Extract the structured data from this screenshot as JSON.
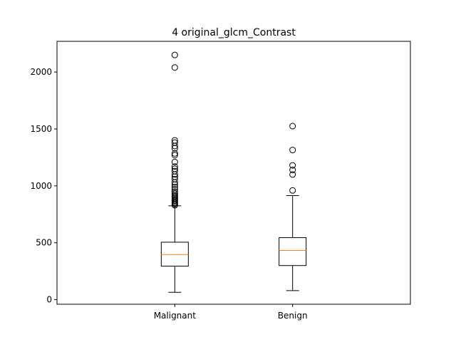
{
  "chart_data": {
    "type": "box",
    "title": "4 original_glcm_Contrast",
    "xlabel": "",
    "ylabel": "",
    "categories": [
      "Malignant",
      "Benign"
    ],
    "ylim": [
      -40,
      2270
    ],
    "yticks": [
      0,
      500,
      1000,
      1500,
      2000
    ],
    "grid": false,
    "boxes": [
      {
        "label": "Malignant",
        "whisker_low": 65,
        "q1": 295,
        "median": 397,
        "q3": 505,
        "whisker_high": 825,
        "outliers": [
          830,
          840,
          850,
          860,
          870,
          880,
          890,
          900,
          910,
          920,
          935,
          950,
          970,
          990,
          1010,
          1030,
          1060,
          1080,
          1100,
          1130,
          1150,
          1170,
          1210,
          1270,
          1285,
          1330,
          1350,
          1380,
          1400,
          2040,
          2150
        ]
      },
      {
        "label": "Benign",
        "whisker_low": 80,
        "q1": 300,
        "median": 433,
        "q3": 545,
        "whisker_high": 915,
        "outliers": [
          960,
          1100,
          1140,
          1180,
          1315,
          1525
        ]
      }
    ],
    "colors": {
      "box": "#000000",
      "median": "#ff7f0e",
      "flier": "#000000"
    }
  }
}
